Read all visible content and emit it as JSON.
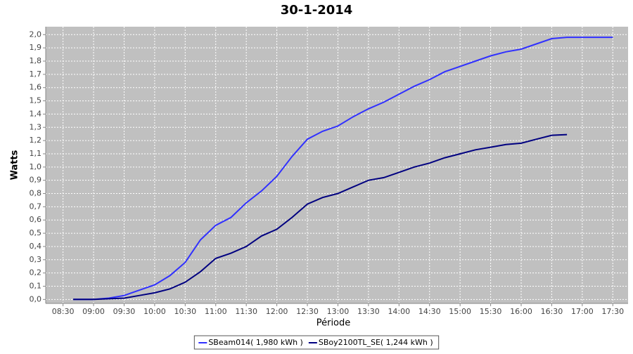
{
  "chart_data": {
    "type": "line",
    "title": "30-1-2014",
    "x_label": "Période",
    "y_label": "Watts",
    "x": [
      "08:40",
      "09:00",
      "09:15",
      "09:30",
      "09:45",
      "10:00",
      "10:15",
      "10:30",
      "10:45",
      "11:00",
      "11:15",
      "11:30",
      "11:45",
      "12:00",
      "12:15",
      "12:30",
      "12:45",
      "13:00",
      "13:15",
      "13:30",
      "13:45",
      "14:00",
      "14:15",
      "14:30",
      "14:45",
      "15:00",
      "15:15",
      "15:30",
      "15:45",
      "16:00",
      "16:15",
      "16:30",
      "16:45",
      "17:00",
      "17:15",
      "17:30"
    ],
    "series": [
      {
        "name": "SBeam014( 1,980 kWh )",
        "color": "#3030ff",
        "values": [
          0,
          0,
          0.01,
          0.03,
          0.07,
          0.11,
          0.18,
          0.28,
          0.45,
          0.56,
          0.62,
          0.73,
          0.82,
          0.93,
          1.08,
          1.21,
          1.27,
          1.31,
          1.38,
          1.44,
          1.49,
          1.55,
          1.61,
          1.66,
          1.72,
          1.76,
          1.8,
          1.84,
          1.87,
          1.89,
          1.93,
          1.97,
          1.98,
          1.98,
          1.98,
          1.98
        ]
      },
      {
        "name": "SBoy2100TL_SE( 1,244 kWh )",
        "color": "#000080",
        "values": [
          0,
          0,
          0.005,
          0.01,
          0.03,
          0.05,
          0.08,
          0.13,
          0.21,
          0.31,
          0.35,
          0.4,
          0.48,
          0.53,
          0.62,
          0.72,
          0.77,
          0.8,
          0.85,
          0.9,
          0.92,
          0.96,
          1.0,
          1.03,
          1.07,
          1.1,
          1.13,
          1.15,
          1.17,
          1.18,
          1.21,
          1.24,
          1.245,
          null,
          null,
          null
        ]
      }
    ],
    "xlim": [
      "08:13",
      "17:45"
    ],
    "xticks": [
      "08:30",
      "09:00",
      "09:30",
      "10:00",
      "10:30",
      "11:00",
      "11:30",
      "12:00",
      "12:30",
      "13:00",
      "13:30",
      "14:00",
      "14:30",
      "15:00",
      "15:30",
      "16:00",
      "16:30",
      "17:00",
      "17:30"
    ],
    "ylim": [
      -0.03,
      2.06
    ],
    "yticks": [
      {
        "value": 0,
        "label": "0,0"
      },
      {
        "value": 0.1,
        "label": "0,1"
      },
      {
        "value": 0.2,
        "label": "0,2"
      },
      {
        "value": 0.3,
        "label": "0,3"
      },
      {
        "value": 0.4,
        "label": "0,4"
      },
      {
        "value": 0.5,
        "label": "0,5"
      },
      {
        "value": 0.6,
        "label": "0,6"
      },
      {
        "value": 0.7,
        "label": "0,7"
      },
      {
        "value": 0.8,
        "label": "0,8"
      },
      {
        "value": 0.9,
        "label": "0,9"
      },
      {
        "value": 1.0,
        "label": "1,0"
      },
      {
        "value": 1.1,
        "label": "1,1"
      },
      {
        "value": 1.2,
        "label": "1,2"
      },
      {
        "value": 1.3,
        "label": "1,3"
      },
      {
        "value": 1.4,
        "label": "1,4"
      },
      {
        "value": 1.5,
        "label": "1,5"
      },
      {
        "value": 1.6,
        "label": "1,6"
      },
      {
        "value": 1.7,
        "label": "1,7"
      },
      {
        "value": 1.8,
        "label": "1,8"
      },
      {
        "value": 1.9,
        "label": "1,9"
      },
      {
        "value": 2.0,
        "label": "2,0"
      }
    ],
    "grid": true
  }
}
